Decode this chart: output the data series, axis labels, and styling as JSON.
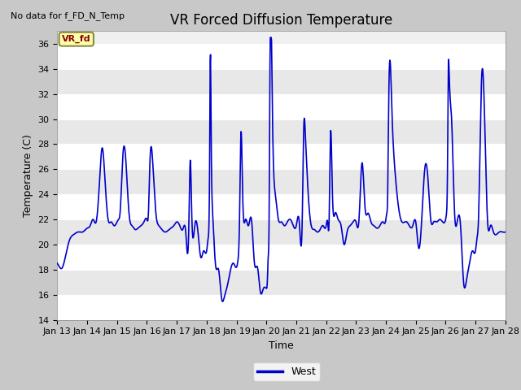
{
  "title": "VR Forced Diffusion Temperature",
  "xlabel": "Time",
  "ylabel": "Temperature (C)",
  "ylim": [
    14,
    37
  ],
  "yticks": [
    14,
    16,
    18,
    20,
    22,
    24,
    26,
    28,
    30,
    32,
    34,
    36
  ],
  "line_color": "#0000cc",
  "line_width": 1.2,
  "no_data_text": "No data for f_FD_N_Temp",
  "label_text": "VR_fd",
  "legend_label": "West",
  "x_tick_labels": [
    "Jan 13",
    "Jan 14",
    "Jan 15",
    "Jan 16",
    "Jan 17",
    "Jan 18",
    "Jan 19",
    "Jan 20",
    "Jan 21",
    "Jan 22",
    "Jan 23",
    "Jan 24",
    "Jan 25",
    "Jan 26",
    "Jan 27",
    "Jan 28"
  ],
  "figsize": [
    6.4,
    4.8
  ],
  "dpi": 100,
  "title_fontsize": 12,
  "axis_label_fontsize": 9,
  "tick_fontsize": 8
}
